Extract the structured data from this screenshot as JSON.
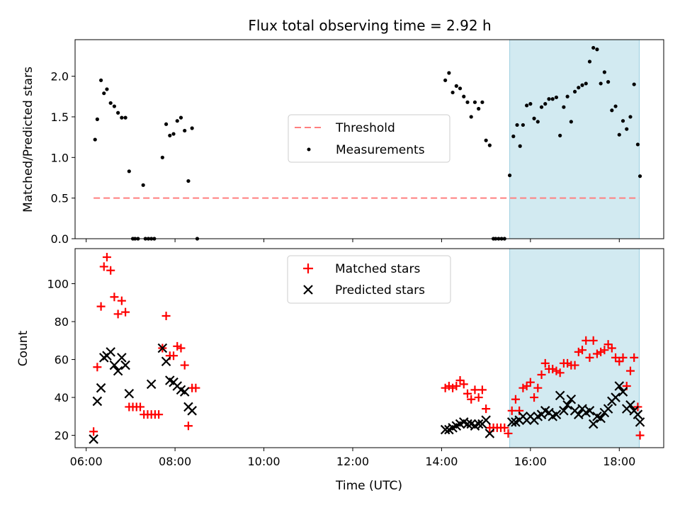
{
  "title": "Flux total observing time = 2.92 h",
  "xlabel": "Time (UTC)",
  "xticks": [
    "06:00",
    "08:00",
    "10:00",
    "12:00",
    "14:00",
    "16:00",
    "18:00"
  ],
  "colors": {
    "highlight": "#add8e6",
    "threshold": "#ff7f7f",
    "matched": "#ff0000",
    "predicted": "#000000",
    "measurement": "#000000"
  },
  "chart_data": [
    {
      "type": "scatter",
      "ylabel": "Matched/Predicted stars",
      "xlim": [
        "05:45",
        "19:00"
      ],
      "ylim": [
        0,
        2.45
      ],
      "yticks": [
        "0.0",
        "0.5",
        "1.0",
        "1.5",
        "2.0"
      ],
      "highlight_span": [
        "15:32",
        "18:27"
      ],
      "threshold": {
        "name": "Threshold",
        "value": 0.5,
        "x_range": [
          "06:10",
          "18:27"
        ]
      },
      "legend": {
        "placement": "center",
        "entries": [
          "Threshold",
          "Measurements"
        ]
      },
      "series": [
        {
          "name": "Measurements",
          "points": [
            [
              "06:12",
              1.22
            ],
            [
              "06:15",
              1.47
            ],
            [
              "06:20",
              1.95
            ],
            [
              "06:24",
              1.79
            ],
            [
              "06:28",
              1.84
            ],
            [
              "06:33",
              1.67
            ],
            [
              "06:38",
              1.63
            ],
            [
              "06:43",
              1.55
            ],
            [
              "06:48",
              1.49
            ],
            [
              "06:53",
              1.49
            ],
            [
              "06:58",
              0.83
            ],
            [
              "07:03",
              0.0
            ],
            [
              "07:06",
              0.0
            ],
            [
              "07:10",
              0.0
            ],
            [
              "07:17",
              0.66
            ],
            [
              "07:20",
              0.0
            ],
            [
              "07:24",
              0.0
            ],
            [
              "07:28",
              0.0
            ],
            [
              "07:32",
              0.0
            ],
            [
              "07:43",
              1.0
            ],
            [
              "07:48",
              1.41
            ],
            [
              "07:53",
              1.27
            ],
            [
              "07:58",
              1.29
            ],
            [
              "08:03",
              1.45
            ],
            [
              "08:08",
              1.49
            ],
            [
              "08:13",
              1.33
            ],
            [
              "08:18",
              0.71
            ],
            [
              "08:23",
              1.36
            ],
            [
              "08:30",
              0.0
            ],
            [
              "14:05",
              1.95
            ],
            [
              "14:10",
              2.04
            ],
            [
              "14:15",
              1.8
            ],
            [
              "14:20",
              1.88
            ],
            [
              "14:25",
              1.85
            ],
            [
              "14:30",
              1.75
            ],
            [
              "14:35",
              1.68
            ],
            [
              "14:40",
              1.5
            ],
            [
              "14:45",
              1.68
            ],
            [
              "14:50",
              1.6
            ],
            [
              "14:55",
              1.68
            ],
            [
              "15:00",
              1.21
            ],
            [
              "15:05",
              1.15
            ],
            [
              "15:10",
              0.0
            ],
            [
              "15:13",
              0.0
            ],
            [
              "15:17",
              0.0
            ],
            [
              "15:21",
              0.0
            ],
            [
              "15:25",
              0.0
            ],
            [
              "15:32",
              0.78
            ],
            [
              "15:37",
              1.26
            ],
            [
              "15:42",
              1.4
            ],
            [
              "15:46",
              1.14
            ],
            [
              "15:50",
              1.4
            ],
            [
              "15:55",
              1.64
            ],
            [
              "16:00",
              1.66
            ],
            [
              "16:05",
              1.48
            ],
            [
              "16:10",
              1.44
            ],
            [
              "16:15",
              1.62
            ],
            [
              "16:20",
              1.66
            ],
            [
              "16:25",
              1.72
            ],
            [
              "16:30",
              1.72
            ],
            [
              "16:35",
              1.74
            ],
            [
              "16:40",
              1.27
            ],
            [
              "16:45",
              1.62
            ],
            [
              "16:50",
              1.75
            ],
            [
              "16:55",
              1.44
            ],
            [
              "17:00",
              1.81
            ],
            [
              "17:05",
              1.86
            ],
            [
              "17:10",
              1.89
            ],
            [
              "17:15",
              1.91
            ],
            [
              "17:20",
              2.18
            ],
            [
              "17:25",
              2.35
            ],
            [
              "17:30",
              2.33
            ],
            [
              "17:35",
              1.91
            ],
            [
              "17:40",
              2.05
            ],
            [
              "17:45",
              1.93
            ],
            [
              "17:50",
              1.58
            ],
            [
              "17:55",
              1.63
            ],
            [
              "18:00",
              1.28
            ],
            [
              "18:05",
              1.45
            ],
            [
              "18:10",
              1.35
            ],
            [
              "18:15",
              1.5
            ],
            [
              "18:20",
              1.9
            ],
            [
              "18:25",
              1.16
            ],
            [
              "18:28",
              0.77
            ]
          ]
        }
      ]
    },
    {
      "type": "scatter",
      "ylabel": "Count",
      "xlim": [
        "05:45",
        "19:00"
      ],
      "ylim": [
        13.5,
        118.5
      ],
      "yticks": [
        "20",
        "40",
        "60",
        "80",
        "100"
      ],
      "highlight_span": [
        "15:32",
        "18:27"
      ],
      "legend": {
        "placement": "top-center",
        "entries": [
          "Matched stars",
          "Predicted stars"
        ]
      },
      "series": [
        {
          "name": "Matched stars",
          "marker": "plus",
          "points": [
            [
              "06:10",
              22
            ],
            [
              "06:15",
              56
            ],
            [
              "06:20",
              88
            ],
            [
              "06:24",
              109
            ],
            [
              "06:28",
              114
            ],
            [
              "06:33",
              107
            ],
            [
              "06:38",
              93
            ],
            [
              "06:43",
              84
            ],
            [
              "06:48",
              91
            ],
            [
              "06:53",
              85
            ],
            [
              "06:58",
              35
            ],
            [
              "07:03",
              35
            ],
            [
              "07:08",
              35
            ],
            [
              "07:13",
              35
            ],
            [
              "07:18",
              31
            ],
            [
              "07:23",
              31
            ],
            [
              "07:28",
              31
            ],
            [
              "07:33",
              31
            ],
            [
              "07:38",
              31
            ],
            [
              "07:43",
              66
            ],
            [
              "07:48",
              83
            ],
            [
              "07:53",
              62
            ],
            [
              "07:58",
              62
            ],
            [
              "08:03",
              67
            ],
            [
              "08:08",
              66
            ],
            [
              "08:13",
              57
            ],
            [
              "08:18",
              25
            ],
            [
              "08:23",
              45
            ],
            [
              "08:28",
              45
            ],
            [
              "14:05",
              45
            ],
            [
              "14:10",
              46
            ],
            [
              "14:15",
              45
            ],
            [
              "14:20",
              46
            ],
            [
              "14:25",
              49
            ],
            [
              "14:30",
              47
            ],
            [
              "14:35",
              42
            ],
            [
              "14:40",
              39
            ],
            [
              "14:45",
              44
            ],
            [
              "14:50",
              40
            ],
            [
              "14:55",
              44
            ],
            [
              "15:00",
              34
            ],
            [
              "15:05",
              24
            ],
            [
              "15:10",
              24
            ],
            [
              "15:15",
              24
            ],
            [
              "15:20",
              24
            ],
            [
              "15:25",
              24
            ],
            [
              "15:30",
              21
            ],
            [
              "15:35",
              33
            ],
            [
              "15:40",
              39
            ],
            [
              "15:45",
              33
            ],
            [
              "15:50",
              45
            ],
            [
              "15:55",
              46
            ],
            [
              "16:00",
              48
            ],
            [
              "16:05",
              40
            ],
            [
              "16:10",
              45
            ],
            [
              "16:15",
              52
            ],
            [
              "16:20",
              58
            ],
            [
              "16:25",
              55
            ],
            [
              "16:30",
              55
            ],
            [
              "16:35",
              54
            ],
            [
              "16:40",
              53
            ],
            [
              "16:45",
              58
            ],
            [
              "16:50",
              58
            ],
            [
              "16:55",
              57
            ],
            [
              "17:00",
              57
            ],
            [
              "17:05",
              64
            ],
            [
              "17:10",
              65
            ],
            [
              "17:15",
              70
            ],
            [
              "17:20",
              61
            ],
            [
              "17:25",
              70
            ],
            [
              "17:30",
              63
            ],
            [
              "17:35",
              64
            ],
            [
              "17:40",
              65
            ],
            [
              "17:45",
              68
            ],
            [
              "17:50",
              66
            ],
            [
              "17:55",
              61
            ],
            [
              "18:00",
              59
            ],
            [
              "18:05",
              61
            ],
            [
              "18:10",
              46
            ],
            [
              "18:15",
              54
            ],
            [
              "18:20",
              61
            ],
            [
              "18:25",
              35
            ],
            [
              "18:28",
              20
            ]
          ]
        },
        {
          "name": "Predicted stars",
          "marker": "x",
          "points": [
            [
              "06:10",
              18
            ],
            [
              "06:15",
              38
            ],
            [
              "06:20",
              45
            ],
            [
              "06:24",
              61
            ],
            [
              "06:28",
              62
            ],
            [
              "06:33",
              64
            ],
            [
              "06:38",
              57
            ],
            [
              "06:43",
              54
            ],
            [
              "06:48",
              61
            ],
            [
              "06:53",
              57
            ],
            [
              "06:58",
              42
            ],
            [
              "07:28",
              47
            ],
            [
              "07:43",
              66
            ],
            [
              "07:48",
              59
            ],
            [
              "07:53",
              49
            ],
            [
              "07:58",
              48
            ],
            [
              "08:03",
              46
            ],
            [
              "08:08",
              44
            ],
            [
              "08:13",
              43
            ],
            [
              "08:18",
              35
            ],
            [
              "08:23",
              33
            ],
            [
              "14:05",
              23
            ],
            [
              "14:10",
              23
            ],
            [
              "14:15",
              24
            ],
            [
              "14:20",
              25
            ],
            [
              "14:25",
              26
            ],
            [
              "14:30",
              27
            ],
            [
              "14:35",
              26
            ],
            [
              "14:40",
              26
            ],
            [
              "14:45",
              25
            ],
            [
              "14:50",
              26
            ],
            [
              "14:55",
              26
            ],
            [
              "15:00",
              28
            ],
            [
              "15:05",
              21
            ],
            [
              "15:35",
              27
            ],
            [
              "15:40",
              27
            ],
            [
              "15:45",
              28
            ],
            [
              "15:50",
              30
            ],
            [
              "15:55",
              28
            ],
            [
              "16:00",
              30
            ],
            [
              "16:05",
              28
            ],
            [
              "16:10",
              30
            ],
            [
              "16:15",
              31
            ],
            [
              "16:20",
              33
            ],
            [
              "16:25",
              32
            ],
            [
              "16:30",
              30
            ],
            [
              "16:35",
              31
            ],
            [
              "16:40",
              41
            ],
            [
              "16:45",
              33
            ],
            [
              "16:50",
              36
            ],
            [
              "16:55",
              39
            ],
            [
              "17:00",
              33
            ],
            [
              "17:05",
              31
            ],
            [
              "17:10",
              34
            ],
            [
              "17:15",
              32
            ],
            [
              "17:20",
              33
            ],
            [
              "17:25",
              26
            ],
            [
              "17:30",
              30
            ],
            [
              "17:35",
              29
            ],
            [
              "17:40",
              32
            ],
            [
              "17:45",
              34
            ],
            [
              "17:50",
              38
            ],
            [
              "17:55",
              40
            ],
            [
              "18:00",
              46
            ],
            [
              "18:05",
              43
            ],
            [
              "18:10",
              34
            ],
            [
              "18:15",
              36
            ],
            [
              "18:20",
              33
            ],
            [
              "18:25",
              31
            ],
            [
              "18:28",
              27
            ]
          ]
        }
      ]
    }
  ]
}
